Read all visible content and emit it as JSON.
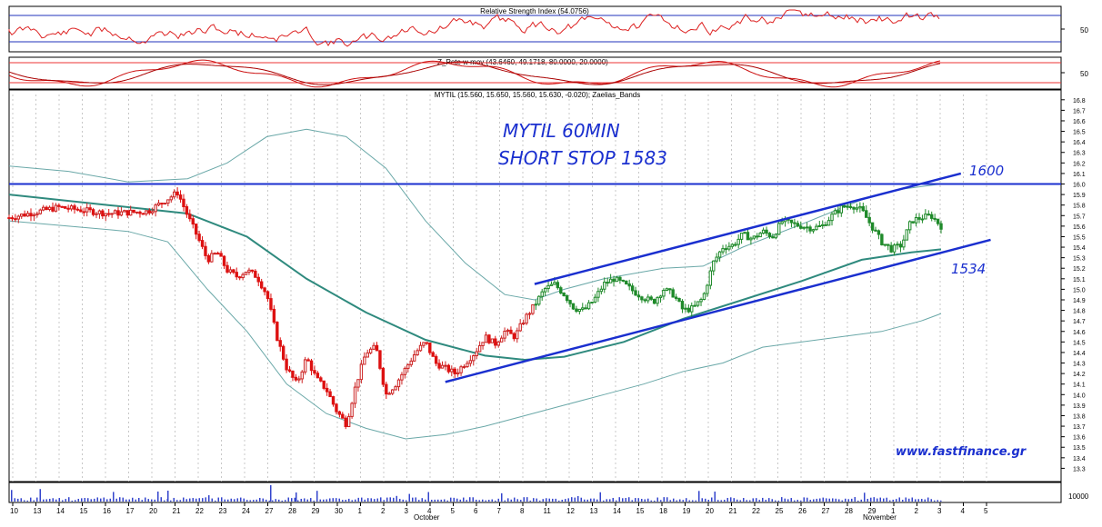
{
  "chart_data": {
    "type": "candlestick",
    "symbol": "MYTIL",
    "ohlc_label": "MYTIL (15.560, 15.650, 15.560, 15.630, -0.020); Zaelias_Bands",
    "annotation_title_1": "MYTIL 60MIN",
    "annotation_title_2": "SHORT STOP 1583",
    "label_resistance": "1600",
    "label_support": "1534",
    "watermark": "www.fastfinance.gr",
    "ylim": [
      13.2,
      16.85
    ],
    "y_ticks": [
      "16.8",
      "16.7",
      "16.6",
      "16.5",
      "16.4",
      "16.3",
      "16.2",
      "16.1",
      "16.0",
      "15.9",
      "15.8",
      "15.7",
      "15.6",
      "15.5",
      "15.4",
      "15.3",
      "15.2",
      "15.1",
      "15.0",
      "14.9",
      "14.8",
      "14.7",
      "14.6",
      "14.5",
      "14.4",
      "14.3",
      "14.2",
      "14.1",
      "14.0",
      "13.9",
      "13.8",
      "13.7",
      "13.6",
      "13.5",
      "13.4",
      "13.3"
    ],
    "x_ticks": [
      "10",
      "13",
      "14",
      "15",
      "16",
      "17",
      "20",
      "21",
      "22",
      "23",
      "24",
      "27",
      "28",
      "29",
      "30",
      "1",
      "2",
      "3",
      "4",
      "5",
      "6",
      "7",
      "8",
      "11",
      "12",
      "13",
      "14",
      "15",
      "18",
      "19",
      "20",
      "21",
      "22",
      "25",
      "26",
      "27",
      "28",
      "29",
      "1",
      "2",
      "3",
      "4",
      "5"
    ],
    "month_labels": [
      "October",
      "November"
    ],
    "close_path": [
      [
        0,
        15.68
      ],
      [
        5,
        15.78
      ],
      [
        10,
        15.72
      ],
      [
        14,
        15.74
      ],
      [
        17,
        15.92
      ],
      [
        18,
        15.7
      ],
      [
        19,
        15.5
      ],
      [
        20,
        15.28
      ],
      [
        21,
        15.35
      ],
      [
        22,
        15.18
      ],
      [
        23,
        15.12
      ],
      [
        24,
        15.18
      ],
      [
        25,
        15.12
      ],
      [
        26,
        14.95
      ],
      [
        27,
        14.55
      ],
      [
        28,
        14.25
      ],
      [
        29,
        14.1
      ],
      [
        30,
        14.35
      ],
      [
        31,
        14.15
      ],
      [
        32,
        14.05
      ],
      [
        33,
        13.85
      ],
      [
        34,
        13.72
      ],
      [
        35,
        14.1
      ],
      [
        36,
        14.4
      ],
      [
        37,
        14.45
      ],
      [
        38,
        14.0
      ],
      [
        39,
        14.1
      ],
      [
        40,
        14.25
      ],
      [
        41,
        14.4
      ],
      [
        42,
        14.5
      ],
      [
        43,
        14.3
      ],
      [
        44,
        14.25
      ],
      [
        45,
        14.2
      ],
      [
        46,
        14.3
      ],
      [
        47,
        14.4
      ],
      [
        48,
        14.55
      ],
      [
        49,
        14.48
      ],
      [
        50,
        14.6
      ],
      [
        51,
        14.55
      ],
      [
        52,
        14.72
      ],
      [
        53,
        14.85
      ],
      [
        54,
        15.0
      ],
      [
        55,
        15.05
      ],
      [
        56,
        14.95
      ],
      [
        57,
        14.82
      ],
      [
        58,
        14.8
      ],
      [
        59,
        14.9
      ],
      [
        60,
        15.05
      ],
      [
        61,
        15.1
      ],
      [
        62,
        15.05
      ],
      [
        63,
        14.98
      ],
      [
        64,
        14.92
      ],
      [
        65,
        14.88
      ],
      [
        66,
        15.0
      ],
      [
        67,
        14.95
      ],
      [
        68,
        14.8
      ],
      [
        69,
        14.82
      ],
      [
        70,
        14.92
      ],
      [
        71,
        15.25
      ],
      [
        72,
        15.4
      ],
      [
        73,
        15.42
      ],
      [
        74,
        15.52
      ],
      [
        75,
        15.48
      ],
      [
        76,
        15.55
      ],
      [
        77,
        15.5
      ],
      [
        78,
        15.65
      ],
      [
        79,
        15.62
      ],
      [
        80,
        15.6
      ],
      [
        81,
        15.58
      ],
      [
        82,
        15.6
      ],
      [
        83,
        15.7
      ],
      [
        84,
        15.78
      ],
      [
        85,
        15.8
      ],
      [
        86,
        15.75
      ],
      [
        87,
        15.6
      ],
      [
        88,
        15.45
      ],
      [
        89,
        15.38
      ],
      [
        90,
        15.42
      ],
      [
        91,
        15.65
      ],
      [
        92,
        15.68
      ],
      [
        93,
        15.7
      ],
      [
        94,
        15.6
      ]
    ],
    "mid_band": [
      [
        0,
        15.9
      ],
      [
        10,
        15.8
      ],
      [
        18,
        15.72
      ],
      [
        24,
        15.5
      ],
      [
        30,
        15.1
      ],
      [
        36,
        14.78
      ],
      [
        42,
        14.52
      ],
      [
        48,
        14.37
      ],
      [
        52,
        14.33
      ],
      [
        56,
        14.36
      ],
      [
        62,
        14.5
      ],
      [
        68,
        14.72
      ],
      [
        74,
        14.9
      ],
      [
        80,
        15.08
      ],
      [
        86,
        15.28
      ],
      [
        91,
        15.35
      ],
      [
        94,
        15.38
      ]
    ],
    "upper_band": [
      [
        0,
        16.17
      ],
      [
        6,
        16.12
      ],
      [
        12,
        16.02
      ],
      [
        18,
        16.05
      ],
      [
        22,
        16.2
      ],
      [
        26,
        16.45
      ],
      [
        30,
        16.52
      ],
      [
        34,
        16.45
      ],
      [
        38,
        16.15
      ],
      [
        42,
        15.65
      ],
      [
        46,
        15.25
      ],
      [
        50,
        14.95
      ],
      [
        53,
        14.9
      ],
      [
        56,
        15.0
      ],
      [
        60,
        15.1
      ],
      [
        66,
        15.2
      ],
      [
        70,
        15.22
      ],
      [
        74,
        15.4
      ],
      [
        80,
        15.62
      ],
      [
        86,
        15.85
      ],
      [
        90,
        15.95
      ],
      [
        94,
        16.0
      ]
    ],
    "lower_band": [
      [
        0,
        15.65
      ],
      [
        6,
        15.6
      ],
      [
        12,
        15.55
      ],
      [
        16,
        15.45
      ],
      [
        20,
        15.0
      ],
      [
        24,
        14.6
      ],
      [
        28,
        14.1
      ],
      [
        32,
        13.82
      ],
      [
        36,
        13.68
      ],
      [
        40,
        13.58
      ],
      [
        44,
        13.62
      ],
      [
        48,
        13.7
      ],
      [
        52,
        13.8
      ],
      [
        56,
        13.9
      ],
      [
        60,
        14.0
      ],
      [
        64,
        14.1
      ],
      [
        68,
        14.22
      ],
      [
        72,
        14.3
      ],
      [
        76,
        14.45
      ],
      [
        80,
        14.5
      ],
      [
        84,
        14.55
      ],
      [
        88,
        14.6
      ],
      [
        92,
        14.7
      ],
      [
        94,
        14.77
      ]
    ],
    "resistance_level": 16.0,
    "channel_upper": [
      [
        53,
        15.05
      ],
      [
        96,
        16.1
      ]
    ],
    "channel_lower": [
      [
        44,
        14.12
      ],
      [
        99,
        15.47
      ]
    ],
    "rsi": {
      "label": "Relative Strength Index (54.0756)",
      "tick": "50",
      "value": 54.0756
    },
    "stoch": {
      "label": "Z_Pete w mov (43.6460, 49.1718, 80.0000, 20.0000)",
      "tick": "50"
    },
    "volume": {
      "tick": "10000"
    }
  }
}
